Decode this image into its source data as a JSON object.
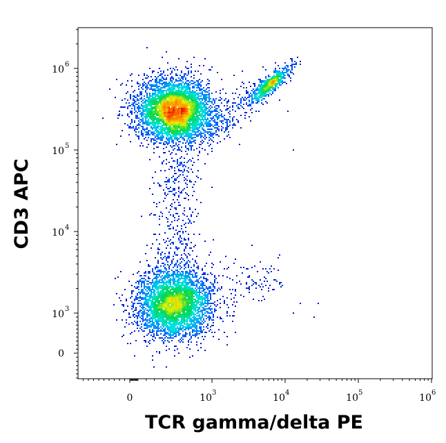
{
  "chart_data": {
    "type": "scatter",
    "subtype": "flow-cytometry density dot plot",
    "xlabel": "TCR gamma/delta PE",
    "ylabel": "CD3 APC",
    "xscale": "biexponential",
    "yscale": "biexponential",
    "x_ticks": [
      {
        "base": "0",
        "exp": ""
      },
      {
        "base": "10",
        "exp": "3"
      },
      {
        "base": "10",
        "exp": "4"
      },
      {
        "base": "10",
        "exp": "5"
      },
      {
        "base": "10",
        "exp": "6"
      }
    ],
    "y_ticks": [
      {
        "base": "0",
        "exp": ""
      },
      {
        "base": "10",
        "exp": "3"
      },
      {
        "base": "10",
        "exp": "4"
      },
      {
        "base": "10",
        "exp": "5"
      },
      {
        "base": "10",
        "exp": "6"
      }
    ],
    "xlim": [
      -1000,
      1100000
    ],
    "ylim": [
      -500,
      2500000
    ],
    "grid": false,
    "legend": "none",
    "color_scale": "density: blue (low) - cyan - green - yellow - red (high)",
    "populations": [
      {
        "x_center": 550,
        "y_center": 300000,
        "relative_density": "highest"
      },
      {
        "x_center": 550,
        "y_center": 1300,
        "relative_density": "high"
      },
      {
        "x_center": 6500,
        "y_center": 650000,
        "relative_density": "medium"
      }
    ]
  }
}
